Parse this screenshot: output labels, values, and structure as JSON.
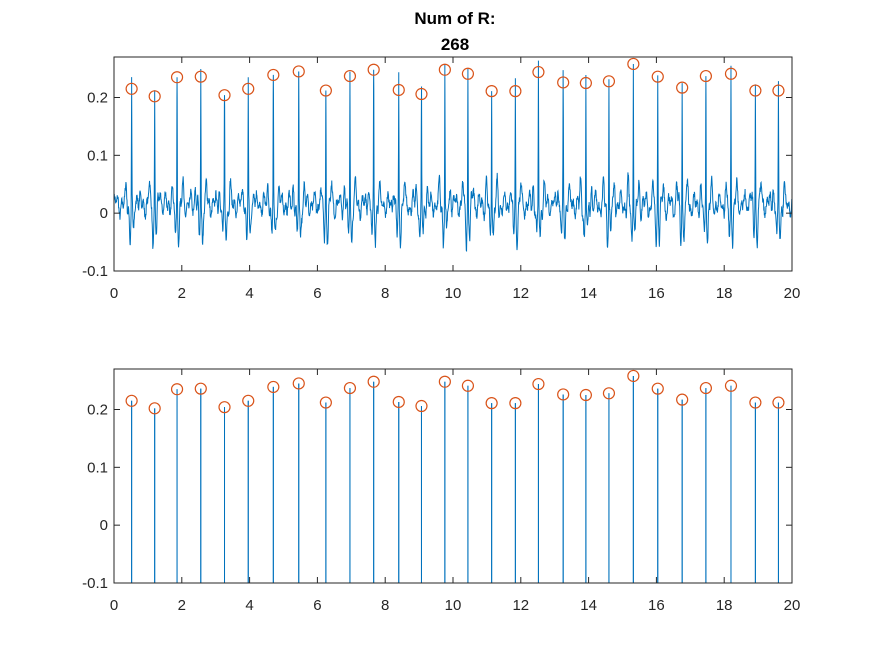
{
  "figure": {
    "title_line1": "Num of R:",
    "title_line2": "268"
  },
  "colors": {
    "trace": "#0072BD",
    "marker": "#D95319",
    "axis": "#262626",
    "background": "#ffffff"
  },
  "chart_data": [
    {
      "type": "line",
      "title": "Num of R:\n268",
      "xlabel": "",
      "ylabel": "",
      "xlim": [
        0,
        20
      ],
      "ylim": [
        -0.1,
        0.27
      ],
      "xticks": [
        0,
        2,
        4,
        6,
        8,
        10,
        12,
        14,
        16,
        18,
        20
      ],
      "xtick_labels": [
        "0",
        "2",
        "4",
        "6",
        "8",
        "10",
        "12",
        "14",
        "16",
        "18",
        "20"
      ],
      "yticks": [
        -0.1,
        0,
        0.1,
        0.2
      ],
      "ytick_labels": [
        "-0.1",
        "0",
        "0.1",
        "0.2"
      ],
      "grid": false,
      "series": [
        {
          "kind": "filtered-signal",
          "peak_x": [
            0.52,
            1.2,
            1.86,
            2.56,
            3.26,
            3.96,
            4.7,
            5.45,
            6.25,
            6.96,
            7.66,
            8.4,
            9.07,
            9.76,
            10.44,
            11.14,
            11.84,
            12.52,
            13.25,
            13.92,
            14.6,
            15.32,
            16.04,
            16.76,
            17.46,
            18.2,
            18.92,
            19.6
          ],
          "peak_y": [
            0.215,
            0.202,
            0.235,
            0.236,
            0.204,
            0.215,
            0.239,
            0.245,
            0.212,
            0.237,
            0.248,
            0.213,
            0.206,
            0.248,
            0.241,
            0.211,
            0.211,
            0.244,
            0.226,
            0.225,
            0.228,
            0.258,
            0.236,
            0.217,
            0.237,
            0.241,
            0.212,
            0.212
          ],
          "baseline_range": [
            -0.09,
            0.045
          ]
        },
        {
          "kind": "r-peaks-markers",
          "marker": "circle",
          "x": [
            0.52,
            1.2,
            1.86,
            2.56,
            3.26,
            3.96,
            4.7,
            5.45,
            6.25,
            6.96,
            7.66,
            8.4,
            9.07,
            9.76,
            10.44,
            11.14,
            11.84,
            12.52,
            13.25,
            13.92,
            14.6,
            15.32,
            16.04,
            16.76,
            17.46,
            18.2,
            18.92,
            19.6
          ],
          "y": [
            0.215,
            0.202,
            0.235,
            0.236,
            0.204,
            0.215,
            0.239,
            0.245,
            0.212,
            0.237,
            0.248,
            0.213,
            0.206,
            0.248,
            0.241,
            0.211,
            0.211,
            0.244,
            0.226,
            0.225,
            0.228,
            0.258,
            0.236,
            0.217,
            0.237,
            0.241,
            0.212,
            0.212
          ]
        }
      ]
    },
    {
      "type": "line",
      "title": "",
      "xlabel": "",
      "ylabel": "",
      "xlim": [
        0,
        20
      ],
      "ylim": [
        -0.1,
        0.27
      ],
      "xticks": [
        0,
        2,
        4,
        6,
        8,
        10,
        12,
        14,
        16,
        18,
        20
      ],
      "xtick_labels": [
        "0",
        "2",
        "4",
        "6",
        "8",
        "10",
        "12",
        "14",
        "16",
        "18",
        "20"
      ],
      "yticks": [
        -0.1,
        0,
        0.1,
        0.2
      ],
      "ytick_labels": [
        "-0.1",
        "0",
        "0.1",
        "0.2"
      ],
      "grid": false,
      "series": [
        {
          "kind": "impulse-train",
          "baseline": -0.1,
          "x": [
            0.52,
            1.2,
            1.86,
            2.56,
            3.26,
            3.96,
            4.7,
            5.45,
            6.25,
            6.96,
            7.66,
            8.4,
            9.07,
            9.76,
            10.44,
            11.14,
            11.84,
            12.52,
            13.25,
            13.92,
            14.6,
            15.32,
            16.04,
            16.76,
            17.46,
            18.2,
            18.92,
            19.6
          ],
          "y": [
            0.215,
            0.202,
            0.235,
            0.236,
            0.204,
            0.215,
            0.239,
            0.245,
            0.212,
            0.237,
            0.248,
            0.213,
            0.206,
            0.248,
            0.241,
            0.211,
            0.211,
            0.244,
            0.226,
            0.225,
            0.228,
            0.258,
            0.236,
            0.217,
            0.237,
            0.241,
            0.212,
            0.212
          ]
        },
        {
          "kind": "r-peaks-markers",
          "marker": "circle",
          "x": [
            0.52,
            1.2,
            1.86,
            2.56,
            3.26,
            3.96,
            4.7,
            5.45,
            6.25,
            6.96,
            7.66,
            8.4,
            9.07,
            9.76,
            10.44,
            11.14,
            11.84,
            12.52,
            13.25,
            13.92,
            14.6,
            15.32,
            16.04,
            16.76,
            17.46,
            18.2,
            18.92,
            19.6
          ],
          "y": [
            0.215,
            0.202,
            0.235,
            0.236,
            0.204,
            0.215,
            0.239,
            0.245,
            0.212,
            0.237,
            0.248,
            0.213,
            0.206,
            0.248,
            0.241,
            0.211,
            0.211,
            0.244,
            0.226,
            0.225,
            0.228,
            0.258,
            0.236,
            0.217,
            0.237,
            0.241,
            0.212,
            0.212
          ]
        }
      ]
    }
  ]
}
